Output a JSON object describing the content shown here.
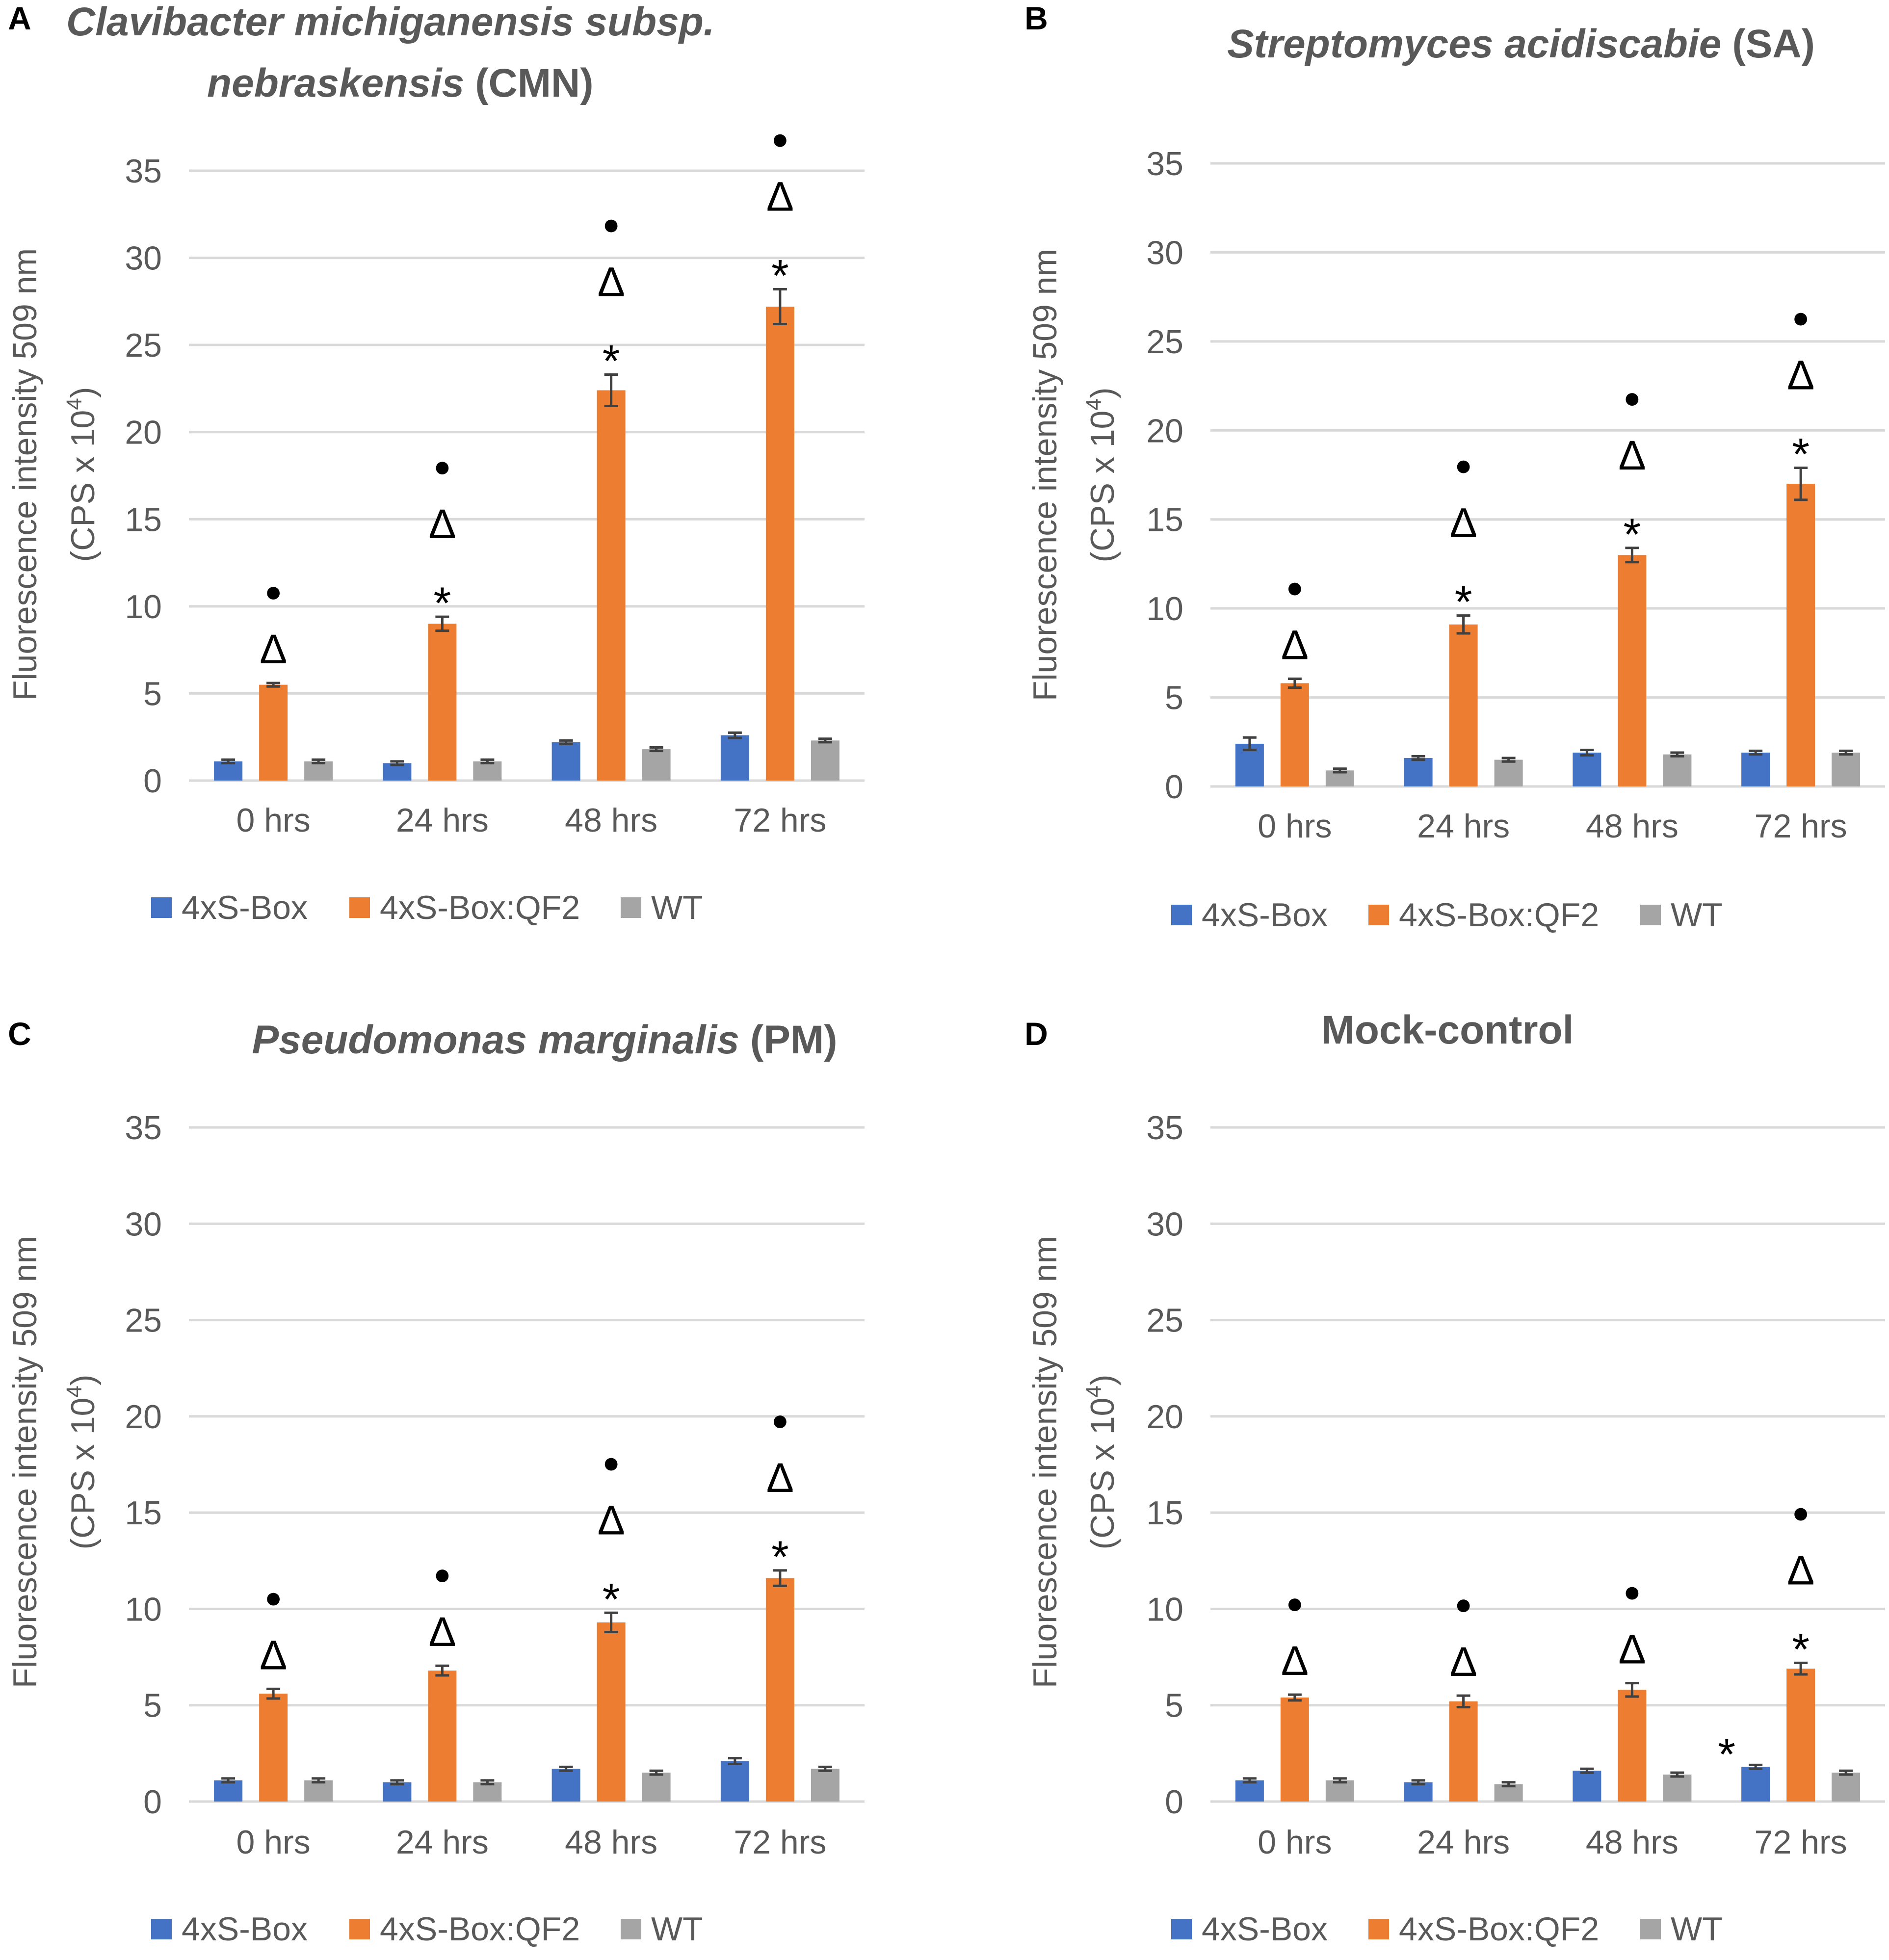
{
  "colors": {
    "series": [
      "#4472C4",
      "#ED7D31",
      "#A5A5A5"
    ],
    "grid": "#D9D9D9",
    "tick_text": "#595959",
    "title_text": "#595959",
    "error_bar": "#404040",
    "marker": "#000000"
  },
  "legend_labels": [
    "4xS-Box",
    "4xS-Box:QF2",
    "WT"
  ],
  "chart_data": [
    {
      "type": "bar",
      "panel_letter": "A",
      "title_italic": "Clavibacter michiganensis subsp. nebraskensis",
      "title_abbrev": "(CMN)",
      "ylabel_line1": "Fluorescence intensity 509 nm",
      "ylabel_line2_prefix": "(CPS x 10",
      "ylabel_exp": "4",
      "ylabel_line2_suffix": ")",
      "ylim": [
        0,
        35
      ],
      "yticks": [
        "0",
        "5",
        "10",
        "15",
        "20",
        "25",
        "30",
        "35"
      ],
      "categories": [
        "0 hrs",
        "24 hrs",
        "48 hrs",
        "72 hrs"
      ],
      "series": [
        {
          "name": "4xS-Box",
          "values": [
            1.1,
            1.0,
            2.2,
            2.6
          ],
          "errors": [
            0.1,
            0.1,
            0.1,
            0.15
          ]
        },
        {
          "name": "4xS-Box:QF2",
          "values": [
            5.5,
            9.0,
            22.4,
            27.2
          ],
          "errors": [
            0.1,
            0.4,
            0.9,
            1.0
          ]
        },
        {
          "name": "WT",
          "values": [
            1.1,
            1.1,
            1.8,
            2.3
          ],
          "errors": [
            0.1,
            0.1,
            0.1,
            0.1
          ]
        }
      ],
      "annotations": [
        {
          "category": "0 hrs",
          "symbols": [
            "●",
            "Δ"
          ]
        },
        {
          "category": "24 hrs",
          "symbols": [
            "●",
            "Δ",
            "*"
          ]
        },
        {
          "category": "48 hrs",
          "symbols": [
            "●",
            "Δ",
            "*"
          ]
        },
        {
          "category": "72 hrs",
          "symbols": [
            "●",
            "Δ",
            "*"
          ]
        }
      ],
      "extra_annotations": []
    },
    {
      "type": "bar",
      "panel_letter": "B",
      "title_italic": "Streptomyces acidiscabie",
      "title_abbrev": "(SA)",
      "ylabel_line1": "Fluorescence intensity 509 nm",
      "ylabel_line2_prefix": "(CPS x 10",
      "ylabel_exp": "4",
      "ylabel_line2_suffix": ")",
      "ylim": [
        0,
        35
      ],
      "yticks": [
        "0",
        "5",
        "10",
        "15",
        "20",
        "25",
        "30",
        "35"
      ],
      "categories": [
        "0 hrs",
        "24 hrs",
        "48 hrs",
        "72 hrs"
      ],
      "series": [
        {
          "name": "4xS-Box",
          "values": [
            2.4,
            1.6,
            1.9,
            1.9
          ],
          "errors": [
            0.35,
            0.1,
            0.15,
            0.1
          ]
        },
        {
          "name": "4xS-Box:QF2",
          "values": [
            5.8,
            9.1,
            13.0,
            17.0
          ],
          "errors": [
            0.25,
            0.5,
            0.4,
            0.9
          ]
        },
        {
          "name": "WT",
          "values": [
            0.9,
            1.5,
            1.8,
            1.9
          ],
          "errors": [
            0.1,
            0.1,
            0.1,
            0.1
          ]
        }
      ],
      "annotations": [
        {
          "category": "0 hrs",
          "symbols": [
            "●",
            "Δ"
          ]
        },
        {
          "category": "24 hrs",
          "symbols": [
            "●",
            "Δ",
            "*"
          ]
        },
        {
          "category": "48 hrs",
          "symbols": [
            "●",
            "Δ",
            "*"
          ]
        },
        {
          "category": "72 hrs",
          "symbols": [
            "●",
            "Δ",
            "*"
          ]
        }
      ],
      "extra_annotations": []
    },
    {
      "type": "bar",
      "panel_letter": "C",
      "title_italic": "Pseudomonas marginalis",
      "title_abbrev": "(PM)",
      "ylabel_line1": "Fluorescence intensity 509 nm",
      "ylabel_line2_prefix": "(CPS x 10",
      "ylabel_exp": "4",
      "ylabel_line2_suffix": ")",
      "ylim": [
        0,
        35
      ],
      "yticks": [
        "0",
        "5",
        "10",
        "15",
        "20",
        "25",
        "30",
        "35"
      ],
      "categories": [
        "0 hrs",
        "24 hrs",
        "48 hrs",
        "72 hrs"
      ],
      "series": [
        {
          "name": "4xS-Box",
          "values": [
            1.1,
            1.0,
            1.7,
            2.1
          ],
          "errors": [
            0.1,
            0.1,
            0.1,
            0.15
          ]
        },
        {
          "name": "4xS-Box:QF2",
          "values": [
            5.6,
            6.8,
            9.3,
            11.6
          ],
          "errors": [
            0.25,
            0.25,
            0.5,
            0.4
          ]
        },
        {
          "name": "WT",
          "values": [
            1.1,
            1.0,
            1.5,
            1.7
          ],
          "errors": [
            0.1,
            0.1,
            0.1,
            0.1
          ]
        }
      ],
      "annotations": [
        {
          "category": "0 hrs",
          "symbols": [
            "●",
            "Δ"
          ]
        },
        {
          "category": "24 hrs",
          "symbols": [
            "●",
            "Δ"
          ]
        },
        {
          "category": "48 hrs",
          "symbols": [
            "●",
            "Δ",
            "*"
          ]
        },
        {
          "category": "72 hrs",
          "symbols": [
            "●",
            "Δ",
            "*"
          ]
        }
      ],
      "extra_annotations": []
    },
    {
      "type": "bar",
      "panel_letter": "D",
      "title_italic": "",
      "title_abbrev": "Mock-control",
      "ylabel_line1": "Fluorescence intensity 509 nm",
      "ylabel_line2_prefix": "(CPS x 10",
      "ylabel_exp": "4",
      "ylabel_line2_suffix": ")",
      "ylim": [
        0,
        35
      ],
      "yticks": [
        "0",
        "5",
        "10",
        "15",
        "20",
        "25",
        "30",
        "35"
      ],
      "categories": [
        "0 hrs",
        "24 hrs",
        "48 hrs",
        "72 hrs"
      ],
      "series": [
        {
          "name": "4xS-Box",
          "values": [
            1.1,
            1.0,
            1.6,
            1.8
          ],
          "errors": [
            0.1,
            0.1,
            0.1,
            0.1
          ]
        },
        {
          "name": "4xS-Box:QF2",
          "values": [
            5.4,
            5.2,
            5.8,
            6.9
          ],
          "errors": [
            0.15,
            0.3,
            0.35,
            0.3
          ]
        },
        {
          "name": "WT",
          "values": [
            1.1,
            0.9,
            1.4,
            1.5
          ],
          "errors": [
            0.1,
            0.1,
            0.1,
            0.1
          ]
        }
      ],
      "annotations": [
        {
          "category": "0 hrs",
          "symbols": [
            "●",
            "Δ"
          ]
        },
        {
          "category": "24 hrs",
          "symbols": [
            "●",
            "Δ"
          ]
        },
        {
          "category": "48 hrs",
          "symbols": [
            "●",
            "Δ"
          ]
        },
        {
          "category": "72 hrs",
          "symbols": [
            "●",
            "Δ",
            "*"
          ]
        }
      ],
      "extra_annotations": [
        {
          "category": "72 hrs",
          "series": "4xS-Box",
          "symbol": "*"
        }
      ]
    }
  ]
}
